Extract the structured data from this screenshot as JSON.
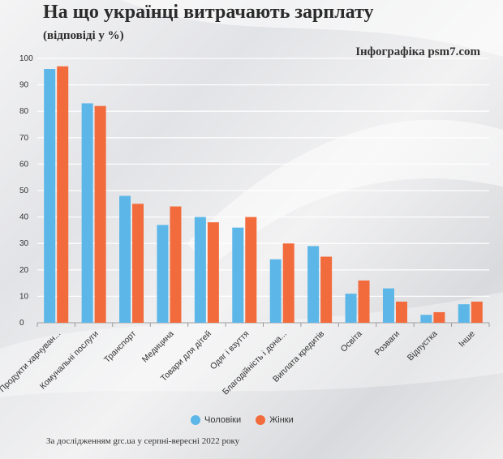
{
  "header": {
    "title": "На що українці витрачають зарплату",
    "subtitle": "(відповіді у %)",
    "credit": "Інфографіка psm7.com"
  },
  "source": "За дослідженням grc.ua у серпні-вересні 2022 року",
  "colors": {
    "men": "#5cb6e8",
    "women": "#f26b3c"
  },
  "chart_data": {
    "type": "bar",
    "title": "На що українці витрачають зарплату",
    "subtitle": "(відповіді у %)",
    "xlabel": "",
    "ylabel": "",
    "ylim": [
      0,
      100
    ],
    "yticks": [
      0,
      10,
      20,
      30,
      40,
      50,
      60,
      70,
      80,
      90,
      100
    ],
    "grid": true,
    "legend_position": "bottom",
    "categories": [
      "Продукти харчуван...",
      "Комунальні послуги",
      "Транспорт",
      "Медицина",
      "Товари для дітей",
      "Одяг і взуття",
      "Благодійність і дона...",
      "Виплата кредитів",
      "Освіта",
      "Розваги",
      "Відпустка",
      "Інше"
    ],
    "series": [
      {
        "name": "Чоловіки",
        "values": [
          96,
          83,
          48,
          37,
          40,
          36,
          24,
          29,
          11,
          13,
          3,
          7
        ]
      },
      {
        "name": "Жінки",
        "values": [
          97,
          82,
          45,
          44,
          38,
          40,
          30,
          25,
          16,
          8,
          4,
          8
        ]
      }
    ]
  }
}
